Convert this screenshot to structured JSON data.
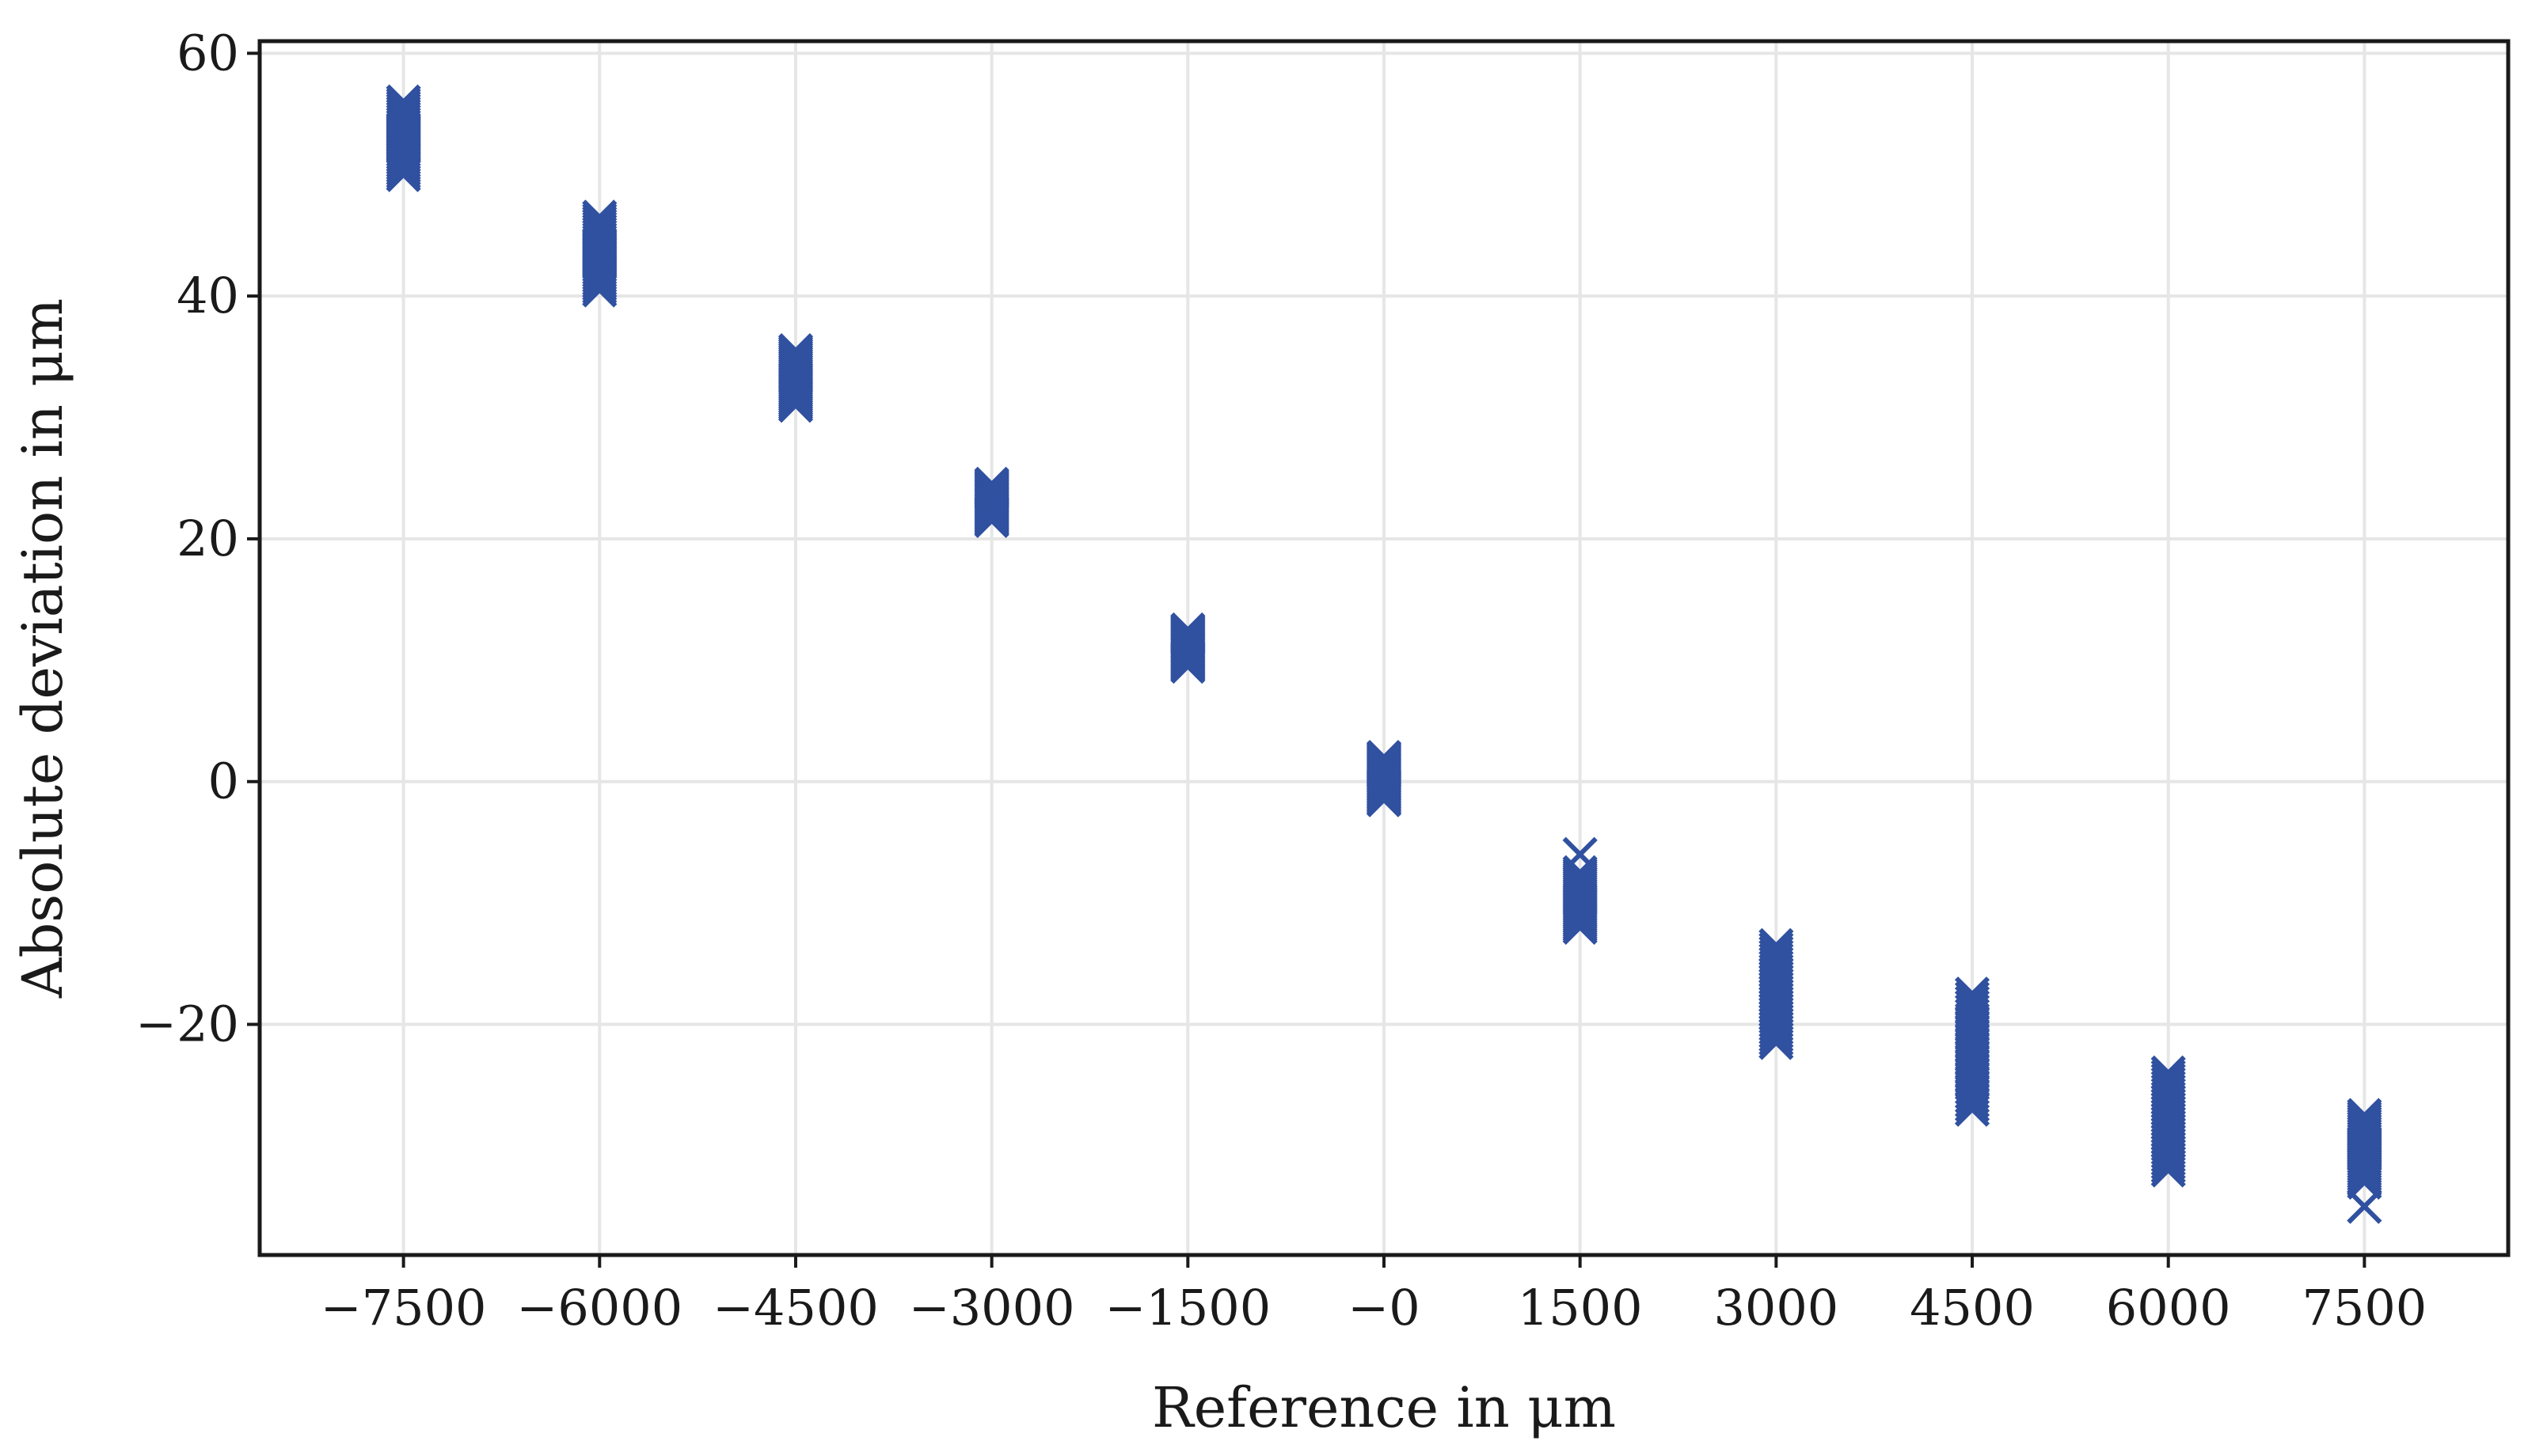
{
  "chart_data": {
    "type": "scatter",
    "title": "",
    "xlabel": "Reference in μm",
    "ylabel": "Absolute deviation in μm",
    "xlim": [
      -8600,
      8600
    ],
    "ylim": [
      -39,
      61
    ],
    "grid": true,
    "legend": "none",
    "marker": "x",
    "color": "#3050a0",
    "x_ticks": [
      -7500,
      -6000,
      -4500,
      -3000,
      -1500,
      0,
      1500,
      3000,
      4500,
      6000,
      7500
    ],
    "x_tick_labels": [
      "−7500",
      "−6000",
      "−4500",
      "−3000",
      "−1500",
      "−0",
      "1500",
      "3000",
      "4500",
      "6000",
      "7500"
    ],
    "y_ticks": [
      60,
      40,
      20,
      0,
      -20
    ],
    "y_tick_labels": [
      "60",
      "40",
      "20",
      "0",
      "−20"
    ],
    "clusters": [
      {
        "x": -7500,
        "y_min": 50,
        "y_max": 56
      },
      {
        "x": -6000,
        "y_min": 40.5,
        "y_max": 46.5
      },
      {
        "x": -4500,
        "y_min": 31,
        "y_max": 35.5
      },
      {
        "x": -3000,
        "y_min": 21.5,
        "y_max": 24.5
      },
      {
        "x": -1500,
        "y_min": 9.5,
        "y_max": 12.5
      },
      {
        "x": 0,
        "y_min": -1.5,
        "y_max": 2
      },
      {
        "x": 1500,
        "y_min": -12,
        "y_max": -7.5
      },
      {
        "x": 3000,
        "y_min": -21.5,
        "y_max": -13.5
      },
      {
        "x": 4500,
        "y_min": -27,
        "y_max": -17.5
      },
      {
        "x": 6000,
        "y_min": -32,
        "y_max": -24
      },
      {
        "x": 7500,
        "y_min": -33,
        "y_max": -27.5
      }
    ],
    "outliers": [
      {
        "x": 1500,
        "y": -6
      },
      {
        "x": 7500,
        "y": -35
      }
    ]
  }
}
